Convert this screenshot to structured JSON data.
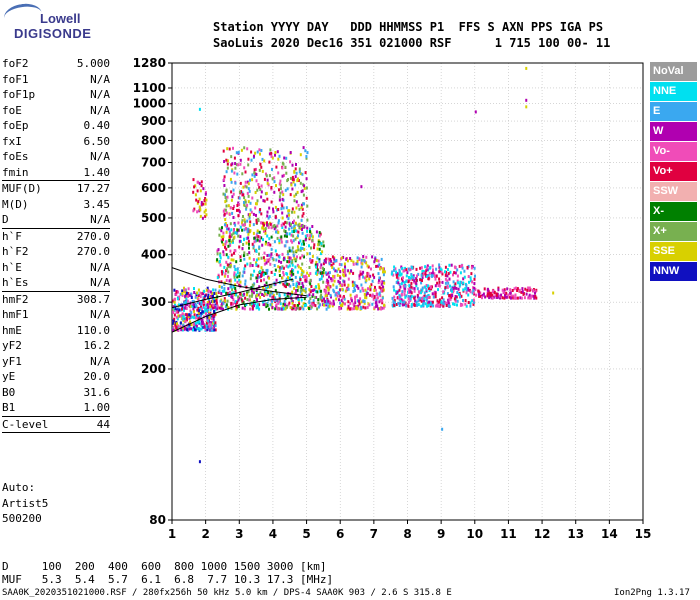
{
  "logo": {
    "top": "Lowell",
    "bottom": "DIGISONDE"
  },
  "header": {
    "line1": "Station YYYY DAY   DDD HHMMSS P1  FFS S AXN PPS IGA PS",
    "line2": "SaoLuis 2020 Dec16 351 021000 RSF      1 715 100 00- 11"
  },
  "params": [
    {
      "name": "foF2",
      "value": "5.000"
    },
    {
      "name": "foF1",
      "value": "N/A"
    },
    {
      "name": "foF1p",
      "value": "N/A"
    },
    {
      "name": "foE",
      "value": "N/A"
    },
    {
      "name": "foEp",
      "value": "0.40"
    },
    {
      "name": "fxI",
      "value": "6.50"
    },
    {
      "name": "foEs",
      "value": "N/A"
    },
    {
      "name": "fmin",
      "value": "1.40",
      "sep": true
    },
    {
      "name": "MUF(D)",
      "value": "17.27"
    },
    {
      "name": "M(D)",
      "value": "3.45"
    },
    {
      "name": "D",
      "value": "N/A",
      "sep": true
    },
    {
      "name": "h`F",
      "value": "270.0"
    },
    {
      "name": "h`F2",
      "value": "270.0"
    },
    {
      "name": "h`E",
      "value": "N/A"
    },
    {
      "name": "h`Es",
      "value": "N/A",
      "sep": true
    },
    {
      "name": "hmF2",
      "value": "308.7"
    },
    {
      "name": "hmF1",
      "value": "N/A"
    },
    {
      "name": "hmE",
      "value": "110.0"
    },
    {
      "name": "yF2",
      "value": "16.2"
    },
    {
      "name": "yF1",
      "value": "N/A"
    },
    {
      "name": "yE",
      "value": "20.0"
    },
    {
      "name": "B0",
      "value": "31.6"
    },
    {
      "name": "B1",
      "value": "1.00",
      "sep": true
    },
    {
      "name": "C-level",
      "value": "44",
      "sep": true
    }
  ],
  "auto": [
    "Auto:",
    "Artist5",
    "500200"
  ],
  "legend": [
    {
      "label": "NoVal",
      "color": "#9c9c9c"
    },
    {
      "label": "NNE",
      "color": "#00e0f0"
    },
    {
      "label": "E",
      "color": "#3aa8f0"
    },
    {
      "label": "W",
      "color": "#b000b0"
    },
    {
      "label": "Vo-",
      "color": "#f04cb8"
    },
    {
      "label": "Vo+",
      "color": "#e00040"
    },
    {
      "label": "SSW",
      "color": "#f2b0b0"
    },
    {
      "label": "X-",
      "color": "#008000"
    },
    {
      "label": "X+",
      "color": "#78b050"
    },
    {
      "label": "SSE",
      "color": "#d8d000"
    },
    {
      "label": "NNW",
      "color": "#1010c0"
    }
  ],
  "bottom": {
    "line1": "D     100  200  400  600  800 1000 1500 3000 [km]",
    "line2": "MUF   5.3  5.4  5.7  6.1  6.8  7.7 10.3 17.3 [MHz]"
  },
  "footer": {
    "left": "SAA0K_2020351021000.RSF / 280fx256h 50 kHz 5.0 km / DPS-4 SAA0K 903 / 2.6 S 315.8 E",
    "right": "Ion2Png 1.3.17"
  },
  "chart_data": {
    "type": "scatter",
    "xlim": [
      1,
      15
    ],
    "ylim": [
      80,
      1280
    ],
    "y_scale": "log",
    "grid": true,
    "x_ticks": [
      1,
      2,
      3,
      4,
      5,
      6,
      7,
      8,
      9,
      10,
      11,
      12,
      13,
      14,
      15
    ],
    "y_ticks": [
      80,
      200,
      300,
      400,
      500,
      600,
      700,
      800,
      900,
      1000,
      1100,
      1280
    ],
    "clusters": [
      {
        "x": [
          1.0,
          2.3
        ],
        "y": [
          255,
          330
        ],
        "n": 420,
        "colors": [
          "#b000b0",
          "#f04cb8",
          "#e00040",
          "#1010c0",
          "#3aa8f0",
          "#d8d000",
          "#00e0f0"
        ]
      },
      {
        "x": [
          2.3,
          5.5
        ],
        "y": [
          290,
          480
        ],
        "n": 900,
        "colors": [
          "#d8d000",
          "#b000b0",
          "#f04cb8",
          "#e00040",
          "#3aa8f0",
          "#008000",
          "#78b050",
          "#00e0f0"
        ]
      },
      {
        "x": [
          2.5,
          5.0
        ],
        "y": [
          480,
          780
        ],
        "n": 380,
        "colors": [
          "#d8d000",
          "#b000b0",
          "#f04cb8",
          "#e00040",
          "#3aa8f0",
          "#78b050"
        ]
      },
      {
        "x": [
          5.5,
          7.3
        ],
        "y": [
          290,
          400
        ],
        "n": 360,
        "colors": [
          "#b000b0",
          "#f04cb8",
          "#e00040",
          "#3aa8f0",
          "#d8d000"
        ]
      },
      {
        "x": [
          7.5,
          10.0
        ],
        "y": [
          295,
          380
        ],
        "n": 480,
        "colors": [
          "#b000b0",
          "#f04cb8",
          "#3aa8f0",
          "#00e0f0",
          "#e00040"
        ]
      },
      {
        "x": [
          10.0,
          11.8
        ],
        "y": [
          310,
          330
        ],
        "n": 120,
        "colors": [
          "#b000b0",
          "#f04cb8",
          "#e00040"
        ]
      },
      {
        "x": [
          1.6,
          2.0
        ],
        "y": [
          500,
          640
        ],
        "n": 40,
        "colors": [
          "#b000b0",
          "#e00040",
          "#d8d000",
          "#f04cb8"
        ]
      }
    ],
    "outliers": [
      {
        "x": 1.8,
        "y": 975,
        "color": "#00e0f0"
      },
      {
        "x": 1.8,
        "y": 115,
        "color": "#1010c0"
      },
      {
        "x": 10.0,
        "y": 960,
        "color": "#b000b0"
      },
      {
        "x": 11.5,
        "y": 1030,
        "color": "#b000b0"
      },
      {
        "x": 11.5,
        "y": 990,
        "color": "#d8d000"
      },
      {
        "x": 11.5,
        "y": 1250,
        "color": "#d8d000"
      },
      {
        "x": 9.0,
        "y": 140,
        "color": "#3aa8f0"
      },
      {
        "x": 12.3,
        "y": 320,
        "color": "#d8d000"
      },
      {
        "x": 6.6,
        "y": 610,
        "color": "#b000b0"
      }
    ],
    "profile_lines": [
      {
        "name": "profile-1",
        "x": [
          1.0,
          2.0,
          3.0,
          4.0,
          5.0
        ],
        "y": [
          250,
          275,
          295,
          305,
          309
        ]
      },
      {
        "name": "profile-2",
        "x": [
          1.0,
          2.0,
          3.0,
          4.0,
          5.0
        ],
        "y": [
          370,
          345,
          330,
          320,
          312
        ]
      },
      {
        "name": "profile-3",
        "x": [
          1.0,
          2.0,
          3.0,
          4.0,
          4.6
        ],
        "y": [
          290,
          305,
          318,
          335,
          345
        ]
      }
    ]
  }
}
